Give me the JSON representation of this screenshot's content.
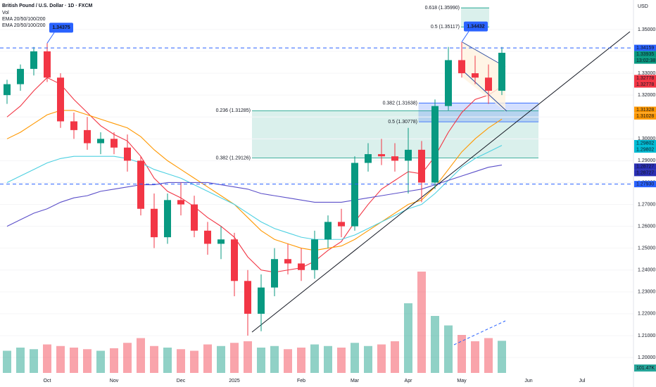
{
  "header": {
    "title": "British Pound / U.S. Dollar · 1D · FXCM",
    "indicators": [
      "Vol",
      "EMA 20/50/100/200",
      "EMA 20/50/100/200"
    ],
    "currency": "USD"
  },
  "chart_data": {
    "type": "candlestick",
    "categories": [
      null,
      null,
      null,
      "Oct",
      null,
      null,
      null,
      null,
      "Nov",
      null,
      null,
      null,
      null,
      "Dec",
      null,
      null,
      null,
      "2025",
      null,
      null,
      null,
      null,
      "Feb",
      null,
      null,
      null,
      "Mar",
      null,
      null,
      null,
      "Apr",
      null,
      null,
      null,
      "May",
      null,
      null,
      null,
      null,
      "Jun",
      null,
      null,
      null,
      "Jul",
      null,
      null
    ],
    "open": [
      1.32,
      1.325,
      1.332,
      1.34,
      1.328,
      1.308,
      1.304,
      1.298,
      1.3,
      1.296,
      1.29,
      1.268,
      1.255,
      1.272,
      1.27,
      1.258,
      1.252,
      1.254,
      1.235,
      1.22,
      1.232,
      1.245,
      1.243,
      1.24,
      1.254,
      1.262,
      1.26,
      1.289,
      1.293,
      1.292,
      1.29,
      1.295,
      1.28,
      1.315,
      1.336,
      1.33,
      1.328,
      1.322,
      null,
      null,
      null,
      null,
      null,
      null,
      null,
      null
    ],
    "high": [
      1.327,
      1.334,
      1.342,
      1.34375,
      1.33,
      1.312,
      1.31,
      1.303,
      1.303,
      1.302,
      1.292,
      1.275,
      1.275,
      1.28,
      1.274,
      1.262,
      1.26,
      1.257,
      1.24,
      1.238,
      1.25,
      1.252,
      1.25,
      1.258,
      1.265,
      1.268,
      1.292,
      1.298,
      1.3,
      1.298,
      1.305,
      1.299,
      1.318,
      1.342,
      1.34432,
      1.338,
      1.334,
      1.342,
      null,
      null,
      null,
      null,
      null,
      null,
      null,
      null
    ],
    "low": [
      1.316,
      1.322,
      1.329,
      1.326,
      1.305,
      1.3,
      1.295,
      1.293,
      1.293,
      1.285,
      1.265,
      1.25,
      1.252,
      1.265,
      1.255,
      1.247,
      1.245,
      1.228,
      1.21,
      1.212,
      1.228,
      1.238,
      1.235,
      1.236,
      1.25,
      1.255,
      1.258,
      1.285,
      1.288,
      1.285,
      1.275,
      1.271,
      1.277,
      1.313,
      1.328,
      1.325,
      1.316,
      1.32,
      null,
      null,
      null,
      null,
      null,
      null,
      null,
      null
    ],
    "close": [
      1.325,
      1.332,
      1.34,
      1.328,
      1.308,
      1.304,
      1.298,
      1.3,
      1.296,
      1.29,
      1.268,
      1.255,
      1.272,
      1.27,
      1.258,
      1.252,
      1.254,
      1.235,
      1.22,
      1.232,
      1.245,
      1.243,
      1.24,
      1.254,
      1.262,
      1.26,
      1.289,
      1.293,
      1.292,
      1.29,
      1.295,
      1.28,
      1.315,
      1.336,
      1.33,
      1.328,
      1.322,
      1.33935,
      null,
      null,
      null,
      null,
      null,
      null,
      null,
      null
    ],
    "up_color": "#089981",
    "down_color": "#f23645",
    "volume": {
      "values": [
        70,
        80,
        75,
        90,
        85,
        80,
        75,
        70,
        78,
        95,
        110,
        85,
        80,
        75,
        70,
        90,
        85,
        95,
        100,
        80,
        85,
        75,
        80,
        90,
        85,
        80,
        95,
        85,
        90,
        100,
        220,
        320,
        180,
        150,
        120,
        100,
        110,
        101.47,
        null,
        null,
        null,
        null,
        null,
        null,
        null,
        null
      ],
      "last_label": "101.47K",
      "color": "#26a69a"
    },
    "series": [
      {
        "color": "#f23645",
        "values": [
          1.31,
          1.315,
          1.322,
          1.328,
          1.325,
          1.318,
          1.312,
          1.306,
          1.302,
          1.299,
          1.292,
          1.282,
          1.276,
          1.273,
          1.269,
          1.264,
          1.26,
          1.255,
          1.246,
          1.24,
          1.239,
          1.24,
          1.241,
          1.244,
          1.249,
          1.253,
          1.262,
          1.27,
          1.277,
          1.281,
          1.285,
          1.284,
          1.292,
          1.303,
          1.312,
          1.318,
          1.32,
          1.324,
          null,
          null,
          null,
          null,
          null,
          null,
          null,
          null
        ]
      },
      {
        "color": "#ff9800",
        "values": [
          1.3,
          1.303,
          1.307,
          1.311,
          1.313,
          1.313,
          1.311,
          1.309,
          1.307,
          1.305,
          1.301,
          1.295,
          1.29,
          1.286,
          1.282,
          1.278,
          1.274,
          1.27,
          1.264,
          1.258,
          1.254,
          1.252,
          1.25,
          1.249,
          1.25,
          1.251,
          1.254,
          1.258,
          1.262,
          1.266,
          1.27,
          1.272,
          1.278,
          1.286,
          1.294,
          1.3,
          1.305,
          1.309,
          null,
          null,
          null,
          null,
          null,
          null,
          null,
          null
        ]
      },
      {
        "color": "#4dd0e1",
        "values": [
          1.28,
          1.283,
          1.286,
          1.289,
          1.291,
          1.292,
          1.292,
          1.292,
          1.292,
          1.291,
          1.289,
          1.286,
          1.284,
          1.282,
          1.279,
          1.276,
          1.273,
          1.27,
          1.266,
          1.262,
          1.259,
          1.257,
          1.255,
          1.254,
          1.254,
          1.254,
          1.256,
          1.259,
          1.262,
          1.265,
          1.268,
          1.27,
          1.275,
          1.281,
          1.287,
          1.291,
          1.294,
          1.297,
          null,
          null,
          null,
          null,
          null,
          null,
          null,
          null
        ]
      },
      {
        "color": "#5b4fc9",
        "values": [
          1.26,
          1.263,
          1.266,
          1.268,
          1.271,
          1.273,
          1.274,
          1.276,
          1.277,
          1.278,
          1.279,
          1.279,
          1.28,
          1.28,
          1.28,
          1.28,
          1.279,
          1.278,
          1.277,
          1.275,
          1.274,
          1.273,
          1.272,
          1.271,
          1.271,
          1.271,
          1.272,
          1.273,
          1.274,
          1.275,
          1.276,
          1.277,
          1.279,
          1.281,
          1.283,
          1.285,
          1.287,
          1.288,
          null,
          null,
          null,
          null,
          null,
          null,
          null,
          null
        ]
      }
    ],
    "ylim": [
      1.1865,
      1.3635
    ],
    "yticks": [
      {
        "value": 1.2,
        "label": "1.20000"
      },
      {
        "value": 1.21,
        "label": "1.21000"
      },
      {
        "value": 1.22,
        "label": "1.22000"
      },
      {
        "value": 1.23,
        "label": "1.23000"
      },
      {
        "value": 1.24,
        "label": "1.24000"
      },
      {
        "value": 1.25,
        "label": "1.25000"
      },
      {
        "value": 1.26,
        "label": "1.26000"
      },
      {
        "value": 1.27,
        "label": "1.27000"
      },
      {
        "value": 1.28,
        "label": "1.28000"
      },
      {
        "value": 1.29,
        "label": "1.29000"
      },
      {
        "value": 1.3,
        "label": "1.30000"
      },
      {
        "value": 1.31,
        "label": "1.31000"
      },
      {
        "value": 1.32,
        "label": "1.32000"
      },
      {
        "value": 1.33,
        "label": "1.33000"
      },
      {
        "value": 1.34,
        "label": "1.34000"
      },
      {
        "value": 1.35,
        "label": "1.35000"
      }
    ],
    "callouts": [
      1.34375,
      1.34432
    ],
    "price_tags": {
      "values": [
        1.34159,
        1.33935,
        1.32778,
        1.32778,
        1.31328,
        1.31028,
        1.29802,
        1.29802,
        1.28727,
        1.28727,
        1.2793
      ],
      "value_labels": [
        "1.34159",
        "1.33935",
        "1.32778",
        "1.32778",
        "1.31328",
        "1.31028",
        "1.29802",
        "1.29802",
        "1.28727",
        "1.28727",
        "1.27930"
      ],
      "colors": [
        "#2962ff",
        "#089981",
        "#f23645",
        "#f23645",
        "#ff9800",
        "#ff9800",
        "#00bcd4",
        "#00bcd4",
        "#2a2fb5",
        "#2a2fb5",
        "#2962ff"
      ],
      "dashed": [
        true,
        false,
        false,
        false,
        false,
        false,
        false,
        false,
        false,
        false,
        true
      ],
      "countdown": "13:02:38"
    },
    "fib_levels": [
      {
        "label": "0.618 (1.35990)",
        "value": 1.3599,
        "color": "#089981"
      },
      {
        "label": "0.5 (1.35117)",
        "value": 1.35117,
        "color": "#089981"
      },
      {
        "label": "0.382 (1.31638)",
        "value": 1.31638,
        "color": "#2962ff"
      },
      {
        "label": "0.5 (1.30778)",
        "value": 1.30778,
        "color": "#2962ff"
      },
      {
        "label": "0.236 (1.31285)",
        "value": 1.31285,
        "color": "#089981"
      },
      {
        "label": "0.382 (1.29126)",
        "value": 1.29126,
        "color": "#089981"
      }
    ]
  }
}
